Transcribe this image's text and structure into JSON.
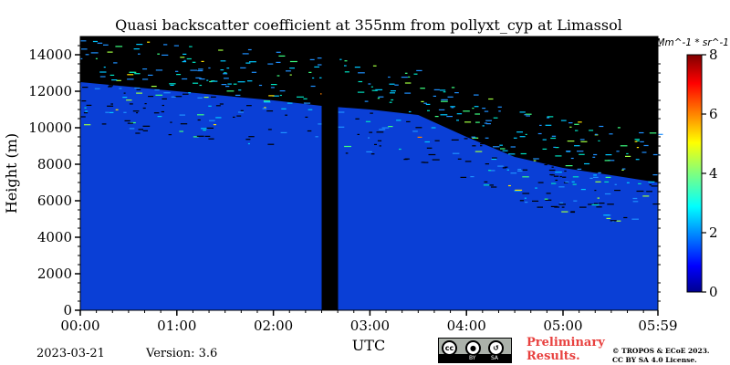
{
  "chart_data": {
    "type": "heatmap",
    "title": "Quasi backscatter coefficient at 355nm from pollyxt_cyp at Limassol",
    "xlabel": "UTC",
    "ylabel": "Height (m)",
    "x_ticks": [
      "00:00",
      "01:00",
      "02:00",
      "03:00",
      "04:00",
      "05:00",
      "05:59"
    ],
    "x_tick_hours": [
      0,
      1,
      2,
      3,
      4,
      5,
      5.983
    ],
    "xlim_hours": [
      0,
      5.983
    ],
    "y_ticks": [
      0,
      2000,
      4000,
      6000,
      8000,
      10000,
      12000,
      14000
    ],
    "ylim": [
      0,
      15000
    ],
    "colorbar": {
      "label": "Mm^-1 * sr^-1",
      "ticks": [
        0,
        2,
        4,
        6,
        8
      ],
      "range": [
        0,
        8
      ],
      "colormap": "jet"
    },
    "no_data_gap_hours": [
      2.5,
      2.67
    ],
    "signal_top_profile": [
      {
        "hour": 0.0,
        "height_m": 12500
      },
      {
        "hour": 1.0,
        "height_m": 12000
      },
      {
        "hour": 2.0,
        "height_m": 11500
      },
      {
        "hour": 2.5,
        "height_m": 11200
      },
      {
        "hour": 3.0,
        "height_m": 11000
      },
      {
        "hour": 3.5,
        "height_m": 10700
      },
      {
        "hour": 4.0,
        "height_m": 9500
      },
      {
        "hour": 4.5,
        "height_m": 8400
      },
      {
        "hour": 5.0,
        "height_m": 7800
      },
      {
        "hour": 5.5,
        "height_m": 7400
      },
      {
        "hour": 5.983,
        "height_m": 7000
      }
    ],
    "background_value": 0.3,
    "colors": {
      "background": "#000000",
      "low_signal": "#0a3fd6"
    }
  },
  "footer": {
    "date": "2023-03-21",
    "version": "Version: 3.6",
    "preliminary": [
      "Preliminary",
      "Results."
    ],
    "copyright": [
      "© TROPOS & ECoE 2023.",
      "CC BY SA 4.0 License."
    ],
    "license_badge": {
      "icons": [
        "cc-icon",
        "by-icon",
        "sa-icon"
      ],
      "labels": [
        "cc",
        "BY",
        "SA"
      ]
    }
  }
}
